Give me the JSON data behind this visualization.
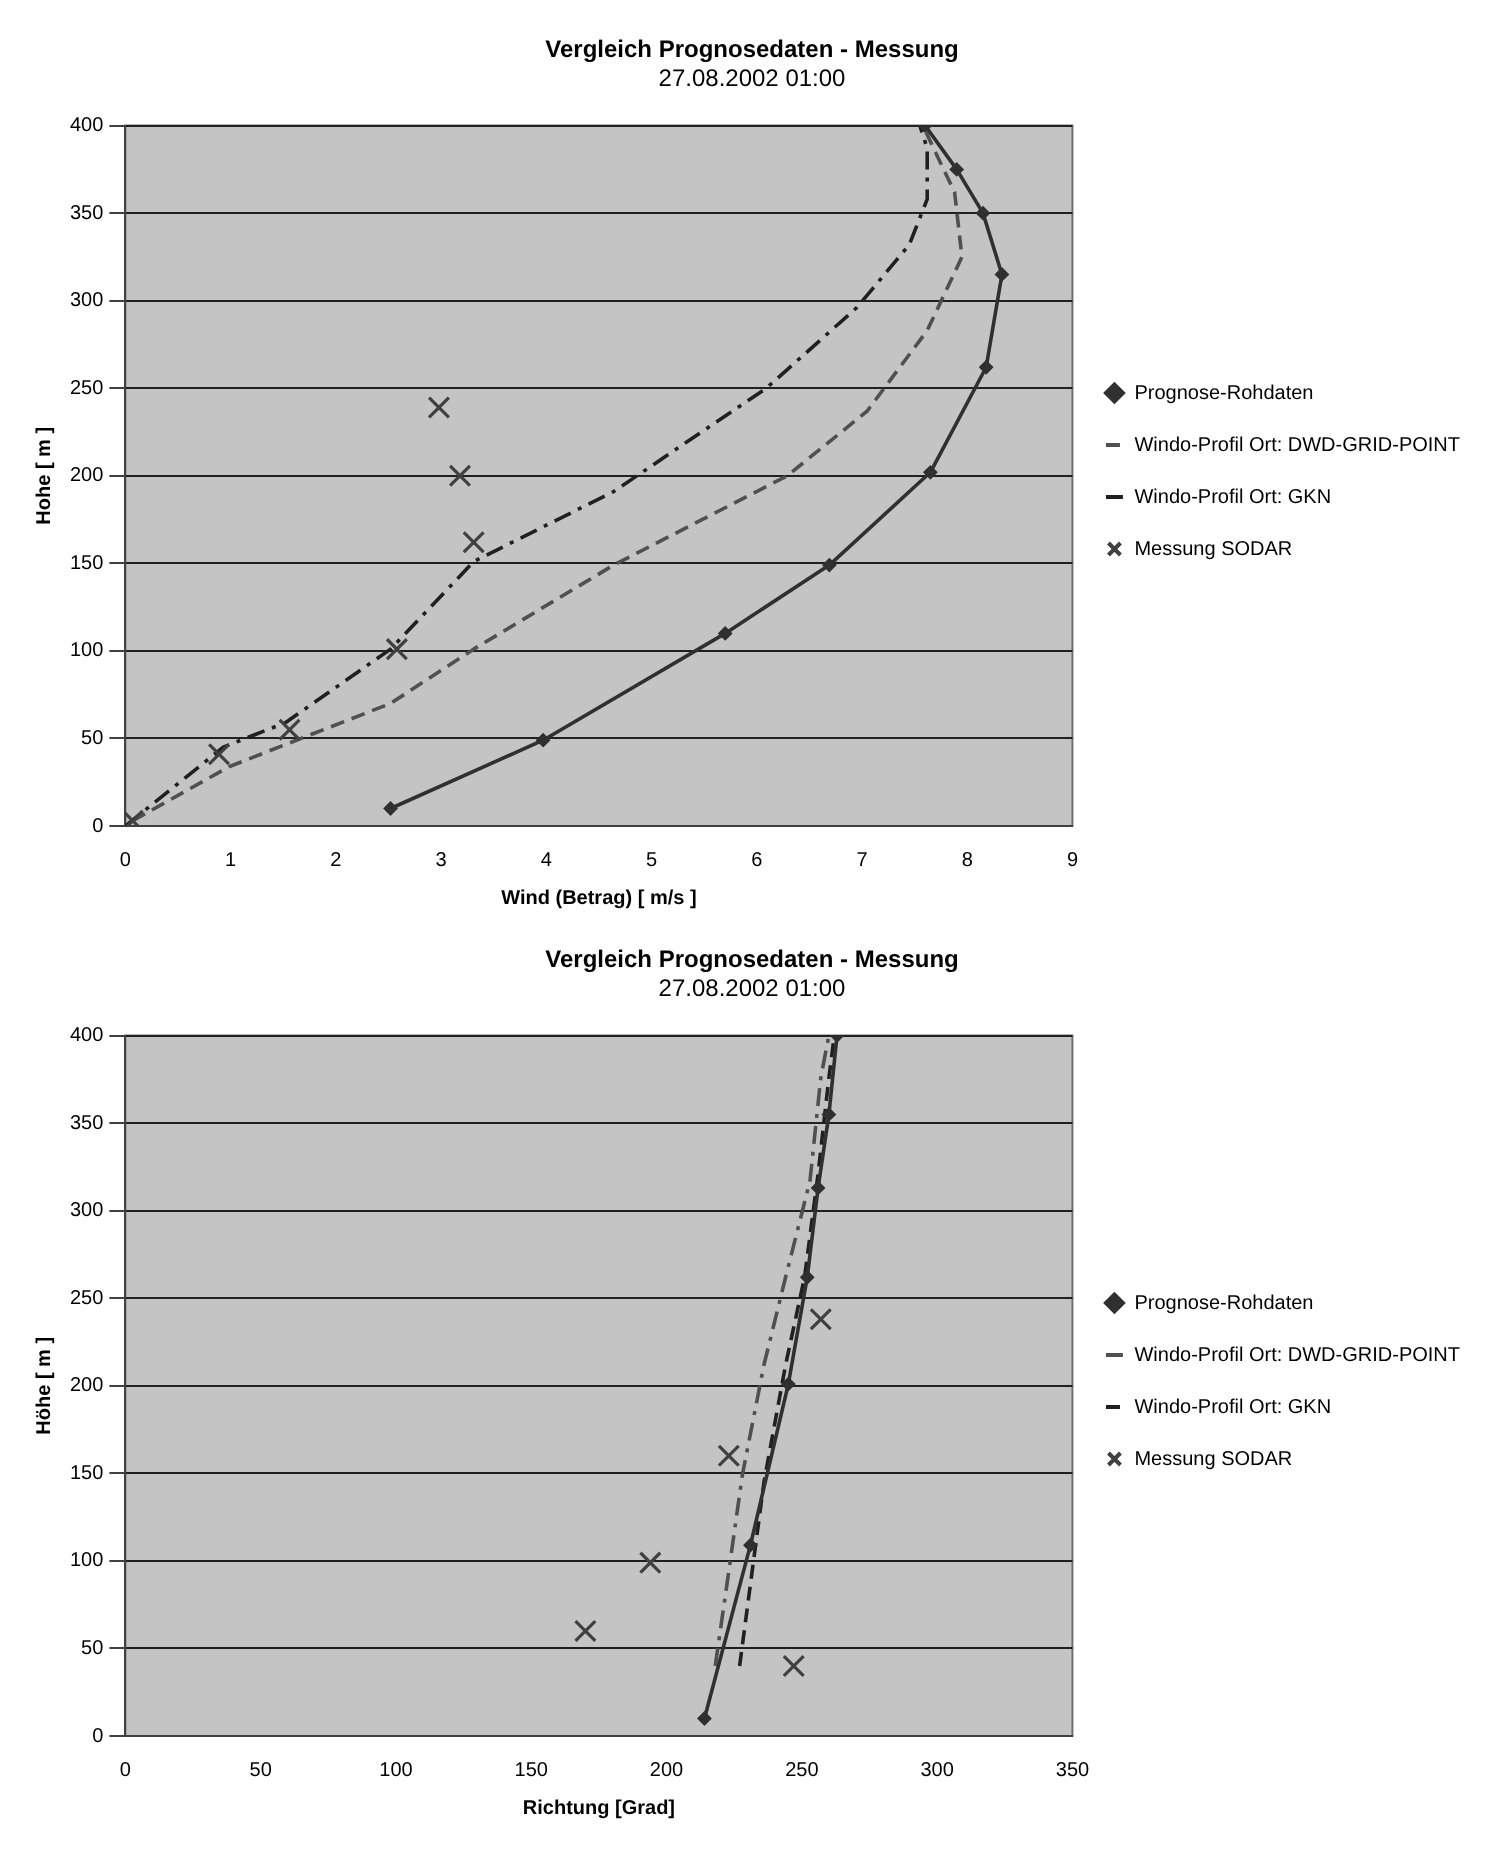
{
  "chart_data": [
    {
      "type": "line",
      "title": "Vergleich Prognosedaten - Messung",
      "subtitle": "27.08.2002 01:00",
      "xlabel": "Wind (Betrag) [ m/s ]",
      "ylabel": "Hohe [ m ]",
      "xlim": [
        0,
        9
      ],
      "xticks": [
        0,
        1,
        2,
        3,
        4,
        5,
        6,
        7,
        8,
        9
      ],
      "ylim": [
        0,
        400
      ],
      "yticks": [
        0,
        50,
        100,
        150,
        200,
        250,
        300,
        350,
        400
      ],
      "grid": "y",
      "legend": "right",
      "series": [
        {
          "name": "Prognose-Rohdaten",
          "type": "line",
          "color": "#303030",
          "marker": "diamond",
          "line_style": "solid",
          "x": [
            2.52,
            3.97,
            5.7,
            6.69,
            7.65,
            8.18,
            8.33,
            8.15,
            7.9,
            7.6
          ],
          "values": [
            10,
            49,
            110,
            149,
            202,
            262,
            315,
            350,
            375,
            400
          ]
        },
        {
          "name": "Windo-Profil Ort: DWD-GRID-POINT",
          "type": "line",
          "color": "#505050",
          "marker": "none",
          "line_style": "dashed",
          "x": [
            0.07,
            0.99,
            2.52,
            3.31,
            4.64,
            6.29,
            7.05,
            7.62,
            7.95,
            7.88,
            7.68,
            7.58
          ],
          "values": [
            3,
            34,
            70,
            101,
            149,
            200,
            237,
            283,
            325,
            362,
            387,
            400
          ]
        },
        {
          "name": "Windo-Profil Ort: GKN",
          "type": "line",
          "color": "#202020",
          "marker": "none",
          "line_style": "dashdot",
          "x": [
            0,
            0.93,
            1.52,
            2.52,
            3.31,
            4.64,
            6.09,
            6.95,
            7.45,
            7.62,
            7.62,
            7.55
          ],
          "values": [
            0,
            45,
            59,
            101,
            151,
            191,
            250,
            296,
            332,
            358,
            387,
            400
          ]
        },
        {
          "name": "Messung SODAR",
          "type": "scatter",
          "color": "#404040",
          "marker": "cross",
          "x": [
            0.07,
            0.89,
            1.56,
            2.58,
            3.31,
            3.18,
            2.98
          ],
          "values": [
            3,
            41,
            55,
            101,
            162,
            200,
            239
          ]
        }
      ]
    },
    {
      "type": "line",
      "title": "Vergleich Prognosedaten - Messung",
      "subtitle": "27.08.2002 01:00",
      "xlabel": "Richtung [Grad]",
      "ylabel": "Höhe [ m ]",
      "xlim": [
        0,
        350
      ],
      "xticks": [
        0,
        50,
        100,
        150,
        200,
        250,
        300,
        350
      ],
      "ylim": [
        0,
        400
      ],
      "yticks": [
        0,
        50,
        100,
        150,
        200,
        250,
        300,
        350,
        400
      ],
      "grid": "y",
      "legend": "right",
      "series": [
        {
          "name": "Prognose-Rohdaten",
          "type": "line",
          "color": "#303030",
          "marker": "diamond",
          "line_style": "solid",
          "x": [
            214,
            231,
            245,
            252,
            256,
            260,
            263
          ],
          "values": [
            10,
            109,
            201,
            262,
            313,
            355,
            400
          ]
        },
        {
          "name": "Windo-Profil Ort: DWD-GRID-POINT",
          "type": "line",
          "color": "#505050",
          "marker": "none",
          "line_style": "dashdot",
          "x": [
            218,
            223,
            228,
            236,
            244,
            253,
            257,
            260
          ],
          "values": [
            40,
            94,
            149,
            212,
            262,
            317,
            376,
            400
          ]
        },
        {
          "name": "Windo-Profil Ort: GKN",
          "type": "line",
          "color": "#202020",
          "marker": "none",
          "line_style": "dashed",
          "x": [
            227,
            236,
            244,
            251,
            256,
            260,
            262
          ],
          "values": [
            40,
            145,
            212,
            262,
            321,
            376,
            400
          ]
        },
        {
          "name": "Messung SODAR",
          "type": "scatter",
          "color": "#404040",
          "marker": "cross",
          "x": [
            247,
            170,
            194,
            223,
            257
          ],
          "values": [
            40,
            60,
            99,
            160,
            238
          ]
        }
      ]
    }
  ]
}
